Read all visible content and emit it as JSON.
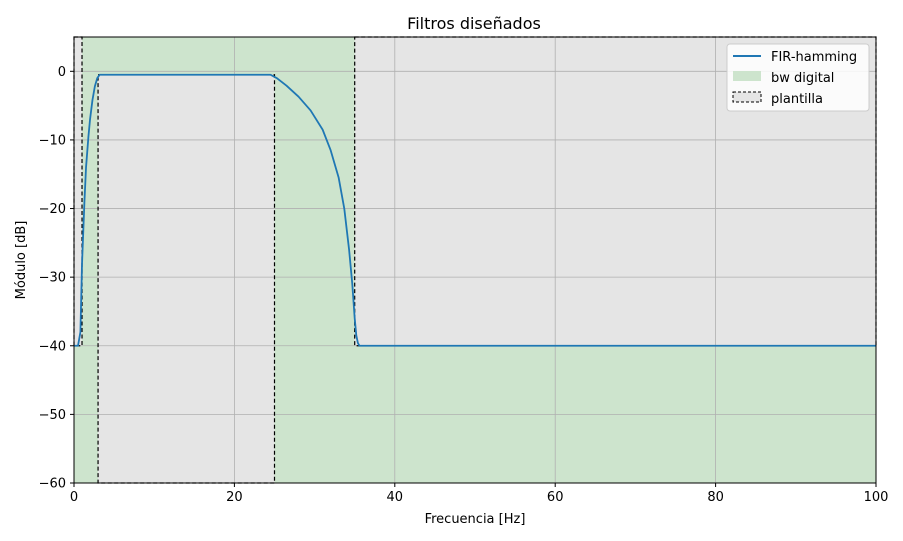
{
  "chart_data": {
    "type": "line",
    "title": "Filtros diseñados",
    "xlabel": "Frecuencia [Hz]",
    "ylabel": "Módulo [dB]",
    "xlim": [
      0,
      100
    ],
    "ylim": [
      -60,
      5
    ],
    "xticks": [
      0,
      20,
      40,
      60,
      80,
      100
    ],
    "yticks": [
      0,
      -10,
      -20,
      -30,
      -40,
      -50,
      -60
    ],
    "xtick_labels": [
      "0",
      "20",
      "40",
      "60",
      "80",
      "100"
    ],
    "ytick_labels": [
      "0",
      "−10",
      "−20",
      "−30",
      "−40",
      "−50",
      "−60"
    ],
    "grid": true,
    "legend_position": "top-right",
    "colors": {
      "line": "#1f77b4",
      "digital_band": "#cde4cd",
      "template_fill": "#e5e5e5",
      "template_edge": "#000000",
      "grid": "#b0b0b0"
    },
    "legend": [
      {
        "label": "FIR-hamming",
        "kind": "line"
      },
      {
        "label": "bw digital",
        "kind": "band"
      },
      {
        "label": "plantilla",
        "kind": "template"
      }
    ],
    "bw_digital": {
      "x": [
        0,
        100
      ],
      "y": [
        -60,
        5
      ]
    },
    "plantilla": [
      {
        "x": [
          0,
          1
        ],
        "y": [
          -40,
          5
        ]
      },
      {
        "x": [
          3,
          25
        ],
        "y": [
          -60,
          -0.5
        ]
      },
      {
        "x": [
          35,
          100
        ],
        "y": [
          -40,
          5
        ]
      }
    ],
    "series": [
      {
        "name": "FIR-hamming",
        "x": [
          0,
          0.5,
          0.8,
          1.0,
          1.3,
          1.5,
          1.8,
          2.0,
          2.3,
          2.6,
          2.9,
          3.2,
          5,
          10,
          15,
          20,
          24.5,
          25.3,
          26.5,
          28,
          29.5,
          31,
          32,
          33,
          33.7,
          34.3,
          34.7,
          35,
          35.2,
          35.4,
          35.6,
          36,
          40,
          60,
          80,
          100
        ],
        "y": [
          -40,
          -40,
          -38,
          -28,
          -19,
          -14,
          -9.5,
          -7,
          -4.2,
          -2.2,
          -1.0,
          -0.5,
          -0.5,
          -0.5,
          -0.5,
          -0.5,
          -0.5,
          -1.0,
          -2.1,
          -3.7,
          -5.7,
          -8.5,
          -11.5,
          -15.5,
          -20,
          -26,
          -31,
          -36,
          -38.5,
          -39.6,
          -40,
          -40,
          -40,
          -40,
          -40,
          -40
        ]
      }
    ]
  }
}
